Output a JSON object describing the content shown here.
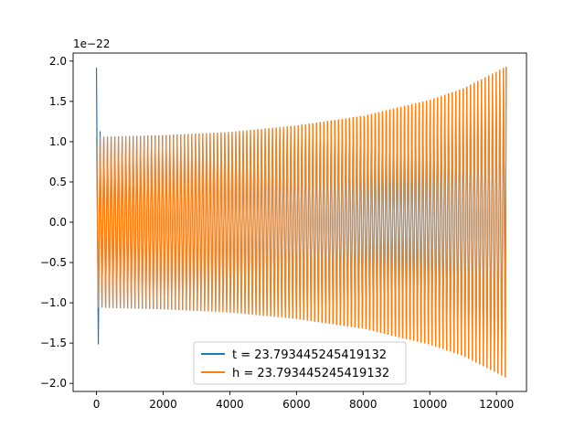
{
  "chart_data": {
    "type": "line",
    "offset_text": "1e−22",
    "y_multiplier": 1e-22,
    "xlim": [
      -700,
      12900
    ],
    "ylim": [
      -2.1,
      2.1
    ],
    "x_ticks": [
      0,
      2000,
      4000,
      6000,
      8000,
      10000,
      12000
    ],
    "x_tick_labels": [
      "0",
      "2000",
      "4000",
      "6000",
      "8000",
      "10000",
      "12000"
    ],
    "y_ticks": [
      -2.0,
      -1.5,
      -1.0,
      -0.5,
      0.0,
      0.5,
      1.0,
      1.5,
      2.0
    ],
    "y_tick_labels": [
      "−2.0",
      "−1.5",
      "−1.0",
      "−0.5",
      "0.0",
      "0.5",
      "1.0",
      "1.5",
      "2.0"
    ],
    "legend_position": "lower center",
    "series": [
      {
        "name": "t = 23.793445245419132",
        "color": "#1f77b4",
        "x_range": [
          0,
          12290
        ],
        "envelope": [
          [
            0,
            1.92
          ],
          [
            60,
            1.48
          ],
          [
            120,
            1.06
          ],
          [
            2000,
            1.08
          ],
          [
            4000,
            1.12
          ],
          [
            6000,
            1.2
          ],
          [
            8000,
            1.32
          ],
          [
            10000,
            1.52
          ],
          [
            11000,
            1.66
          ],
          [
            12000,
            1.87
          ],
          [
            12290,
            1.93
          ]
        ]
      },
      {
        "name": "h = 23.793445245419132",
        "color": "#ff7f0e",
        "x_range": [
          0,
          12290
        ],
        "envelope": [
          [
            0,
            1.06
          ],
          [
            2000,
            1.08
          ],
          [
            4000,
            1.12
          ],
          [
            6000,
            1.2
          ],
          [
            8000,
            1.32
          ],
          [
            10000,
            1.52
          ],
          [
            11000,
            1.66
          ],
          [
            12000,
            1.87
          ],
          [
            12290,
            1.93
          ]
        ]
      }
    ]
  }
}
